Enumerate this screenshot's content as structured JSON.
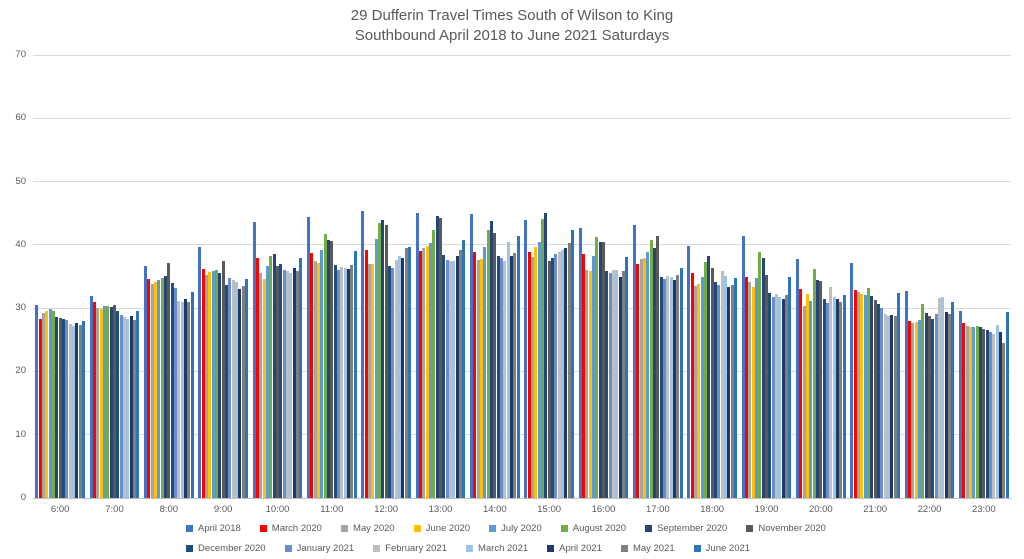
{
  "title": {
    "line1": "29 Dufferin Travel Times South of Wilson to King",
    "line2": "Southbound April 2018 to June 2021 Saturdays"
  },
  "colors": {
    "text": "#595959",
    "gridline": "#d9d9d9",
    "axis_line": "#bfbfbf"
  },
  "chart_data": {
    "type": "bar",
    "title": "29 Dufferin Travel Times South of Wilson to King Southbound April 2018 to June 2021 Saturdays",
    "xlabel": "",
    "ylabel": "",
    "ylim": [
      0,
      70
    ],
    "yticks": [
      0,
      10,
      20,
      30,
      40,
      50,
      60,
      70
    ],
    "grid": "horizontal",
    "legend_position": "bottom",
    "categories": [
      "6:00",
      "7:00",
      "8:00",
      "9:00",
      "10:00",
      "11:00",
      "12:00",
      "13:00",
      "14:00",
      "15:00",
      "16:00",
      "17:00",
      "18:00",
      "19:00",
      "20:00",
      "21:00",
      "22:00",
      "23:00"
    ],
    "series": [
      {
        "name": "April 2018",
        "color": "#4472C4",
        "values": [
          30.5,
          31.9,
          36.7,
          39.7,
          43.6,
          44.4,
          45.3,
          45.1,
          44.9,
          44.0,
          42.7,
          43.2,
          39.9,
          41.4,
          37.7,
          37.2,
          32.7,
          29.5
        ]
      },
      {
        "name": "March 2020",
        "color": "#FF0000",
        "values": [
          28.3,
          30.9,
          34.6,
          36.2,
          38.0,
          38.7,
          39.2,
          39.1,
          38.8,
          38.9,
          38.5,
          37.0,
          35.6,
          34.9,
          33.0,
          32.8,
          27.9,
          27.7
        ]
      },
      {
        "name": "May 2020",
        "color": "#A5A5A5",
        "values": [
          29.3,
          30.0,
          33.8,
          35.3,
          35.5,
          37.5,
          37.0,
          39.5,
          37.6,
          38.1,
          36.1,
          37.7,
          33.5,
          34.2,
          30.4,
          32.5,
          27.6,
          27.2
        ]
      },
      {
        "name": "June 2020",
        "color": "#FFC000",
        "values": [
          29.5,
          29.8,
          34.1,
          35.7,
          34.6,
          37.2,
          37.0,
          39.8,
          37.7,
          39.7,
          35.8,
          37.9,
          33.8,
          33.4,
          32.3,
          32.3,
          27.8,
          27.0
        ]
      },
      {
        "name": "July 2020",
        "color": "#5B9BD5",
        "values": [
          29.8,
          30.3,
          34.4,
          35.9,
          36.6,
          39.2,
          40.9,
          40.3,
          39.6,
          40.4,
          38.3,
          38.8,
          34.9,
          34.7,
          31.1,
          32.1,
          28.2,
          27.1
        ]
      },
      {
        "name": "August 2020",
        "color": "#70AD47",
        "values": [
          29.6,
          30.4,
          34.7,
          36.1,
          38.3,
          41.7,
          43.5,
          42.4,
          42.4,
          44.1,
          41.3,
          40.7,
          37.3,
          38.8,
          36.2,
          33.2,
          30.6,
          27.2
        ]
      },
      {
        "name": "September 2020",
        "color": "#264478",
        "values": [
          28.6,
          30.2,
          35.1,
          35.5,
          38.5,
          40.8,
          43.9,
          44.6,
          43.8,
          45.0,
          40.5,
          39.5,
          38.2,
          38.0,
          34.4,
          31.9,
          29.2,
          27.0
        ]
      },
      {
        "name": "November 2020",
        "color": "#595959",
        "values": [
          28.4,
          30.5,
          37.2,
          37.4,
          36.7,
          40.6,
          43.2,
          44.2,
          41.8,
          37.4,
          40.4,
          41.4,
          36.4,
          35.3,
          34.3,
          31.3,
          28.7,
          26.7
        ]
      },
      {
        "name": "December 2020",
        "color": "#1F4E79",
        "values": [
          28.3,
          29.5,
          33.9,
          33.7,
          36.9,
          36.8,
          36.7,
          38.4,
          38.2,
          37.9,
          35.9,
          35.0,
          34.1,
          32.4,
          31.4,
          30.7,
          28.3,
          26.5
        ]
      },
      {
        "name": "January 2021",
        "color": "#698ED0",
        "values": [
          28.1,
          28.9,
          33.2,
          34.7,
          36.1,
          36.1,
          36.3,
          37.6,
          37.9,
          38.6,
          35.6,
          34.6,
          33.7,
          31.8,
          30.8,
          30.0,
          29.0,
          26.2
        ]
      },
      {
        "name": "February 2021",
        "color": "#BFBFBF",
        "values": [
          27.5,
          28.6,
          31.2,
          34.5,
          35.8,
          36.5,
          37.6,
          37.5,
          37.5,
          38.9,
          36.1,
          35.1,
          35.8,
          32.3,
          33.4,
          29.1,
          31.6,
          25.9
        ]
      },
      {
        "name": "March 2021",
        "color": "#9DC3E6",
        "values": [
          27.2,
          28.3,
          31.0,
          34.2,
          35.5,
          36.3,
          38.3,
          37.4,
          40.5,
          39.2,
          36.0,
          34.9,
          35.1,
          31.7,
          31.8,
          28.7,
          31.8,
          27.4
        ]
      },
      {
        "name": "April 2021",
        "color": "#203864",
        "values": [
          27.7,
          28.8,
          31.5,
          33.0,
          36.3,
          36.2,
          37.9,
          38.2,
          38.3,
          39.5,
          35.0,
          34.5,
          33.4,
          31.4,
          31.4,
          28.9,
          29.4,
          26.3
        ]
      },
      {
        "name": "May 2021",
        "color": "#7F7F7F",
        "values": [
          27.4,
          28.1,
          31.0,
          33.5,
          35.8,
          36.8,
          39.5,
          39.2,
          38.7,
          40.3,
          35.8,
          35.3,
          33.6,
          32.1,
          30.9,
          28.8,
          29.0,
          24.5
        ]
      },
      {
        "name": "June 2021",
        "color": "#2E75B6",
        "values": [
          27.9,
          29.6,
          32.6,
          34.6,
          38.0,
          39.1,
          39.7,
          40.7,
          41.4,
          42.3,
          38.1,
          36.3,
          34.7,
          34.9,
          32.1,
          32.4,
          31.0,
          29.4
        ]
      }
    ]
  }
}
